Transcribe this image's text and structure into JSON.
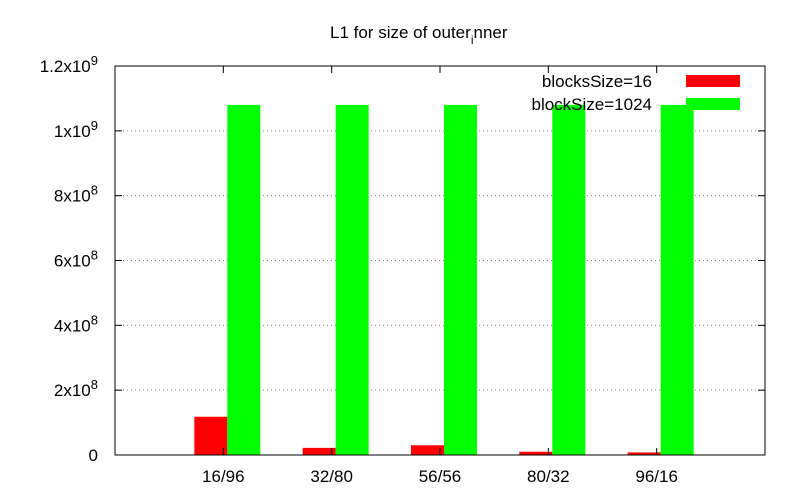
{
  "chart_data": {
    "type": "bar",
    "title_main": "L1 for size of outer",
    "title_sub": "i",
    "title_tail": "nner",
    "categories": [
      "16/96",
      "32/80",
      "56/56",
      "80/32",
      "96/16"
    ],
    "series": [
      {
        "name": "blocksSize=16",
        "color": "#ff0000",
        "values": [
          118000000,
          22000000,
          30000000,
          10000000,
          8000000
        ]
      },
      {
        "name": "blockSize=1024",
        "color": "#00ff00",
        "values": [
          1080000000,
          1080000000,
          1080000000,
          1080000000,
          1080000000
        ]
      }
    ],
    "ylim": [
      0,
      1200000000
    ],
    "yticks": [
      {
        "value": 0,
        "base": "0",
        "exp": ""
      },
      {
        "value": 200000000,
        "base": "2x10",
        "exp": "8"
      },
      {
        "value": 400000000,
        "base": "4x10",
        "exp": "8"
      },
      {
        "value": 600000000,
        "base": "6x10",
        "exp": "8"
      },
      {
        "value": 800000000,
        "base": "8x10",
        "exp": "8"
      },
      {
        "value": 1000000000,
        "base": "1x10",
        "exp": "9"
      },
      {
        "value": 1200000000,
        "base": "1.2x10",
        "exp": "9"
      }
    ],
    "grid": true,
    "legend": "top-right"
  }
}
